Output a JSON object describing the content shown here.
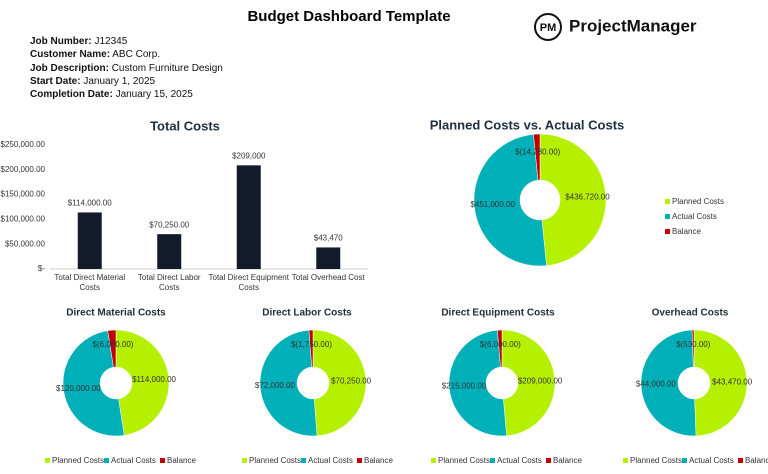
{
  "header": {
    "title": "Budget Dashboard Template",
    "logo_mark": "PM",
    "logo": "ProjectManager"
  },
  "job_info": [
    {
      "label": "Job Number:",
      "value": "J12345"
    },
    {
      "label": "Customer Name:",
      "value": "ABC Corp."
    },
    {
      "label": "Job Description:",
      "value": "Custom Furniture Design"
    },
    {
      "label": "Start Date:",
      "value": "January 1, 2025"
    },
    {
      "label": "Completion Date:",
      "value": "January 15, 2025"
    }
  ],
  "chart_data": [
    {
      "type": "bar",
      "title": "Total Costs",
      "categories": [
        "Total Direct Material Costs",
        "Total Direct Labor Costs",
        "Total Direct Equipment Costs",
        "Total Overhead Cost"
      ],
      "values": [
        114000,
        70250,
        209000,
        43470
      ],
      "value_labels": [
        "$114,000.00",
        "$70,250.00",
        "$209,000",
        "$43,470"
      ],
      "color": "#131a2a",
      "ylim": [
        0,
        250000
      ],
      "yticks": [
        {
          "value": 0,
          "label": "$-"
        },
        {
          "value": 50000,
          "label": "$50,000.00"
        },
        {
          "value": 100000,
          "label": "$100,000.00"
        },
        {
          "value": 150000,
          "label": "$150,000.00"
        },
        {
          "value": 200000,
          "label": "$200,000.00"
        },
        {
          "value": 250000,
          "label": "$250,000.00"
        }
      ],
      "grid": false
    },
    {
      "type": "pie",
      "title": "Planned Costs vs. Actual Costs",
      "donut": true,
      "legend": "right",
      "categories": [
        "Planned Costs",
        "Actual Costs",
        "Balance"
      ],
      "values": [
        436720,
        451000,
        -14280
      ],
      "value_labels": [
        "$436,720.00",
        "$451,000.00",
        "$(14,280.00)"
      ],
      "colors": [
        "#b5f000",
        "#00b0b9",
        "#c00000"
      ]
    },
    {
      "type": "pie",
      "title": "Direct Material Costs",
      "donut": true,
      "legend": "bottom",
      "categories": [
        "Planned Costs",
        "Actual Costs",
        "Balance"
      ],
      "values": [
        114000,
        120000,
        -6000
      ],
      "value_labels": [
        "$114,000.00",
        "$120,000.00",
        "$(6,000.00)"
      ],
      "colors": [
        "#b5f000",
        "#00b0b9",
        "#c00000"
      ]
    },
    {
      "type": "pie",
      "title": "Direct Labor Costs",
      "donut": true,
      "legend": "bottom",
      "categories": [
        "Planned Costs",
        "Actual Costs",
        "Balance"
      ],
      "values": [
        70250,
        72000,
        -1750
      ],
      "value_labels": [
        "$70,250.00",
        "$72,000.00",
        "$(1,750.00)"
      ],
      "colors": [
        "#b5f000",
        "#00b0b9",
        "#c00000"
      ]
    },
    {
      "type": "pie",
      "title": "Direct Equipment Costs",
      "donut": true,
      "legend": "bottom",
      "categories": [
        "Planned Costs",
        "Actual Costs",
        "Balance"
      ],
      "values": [
        209000,
        215000,
        -6000
      ],
      "value_labels": [
        "$209,000.00",
        "$215,000.00",
        "$(6,000.00)"
      ],
      "colors": [
        "#b5f000",
        "#00b0b9",
        "#c00000"
      ]
    },
    {
      "type": "pie",
      "title": "Overhead Costs",
      "donut": true,
      "legend": "bottom",
      "categories": [
        "Planned Costs",
        "Actual Costs",
        "Balance"
      ],
      "values": [
        43470,
        44000,
        -530
      ],
      "value_labels": [
        "$43,470.00",
        "$44,000.00",
        "$(530.00)"
      ],
      "colors": [
        "#b5f000",
        "#00b0b9",
        "#c00000"
      ]
    }
  ]
}
